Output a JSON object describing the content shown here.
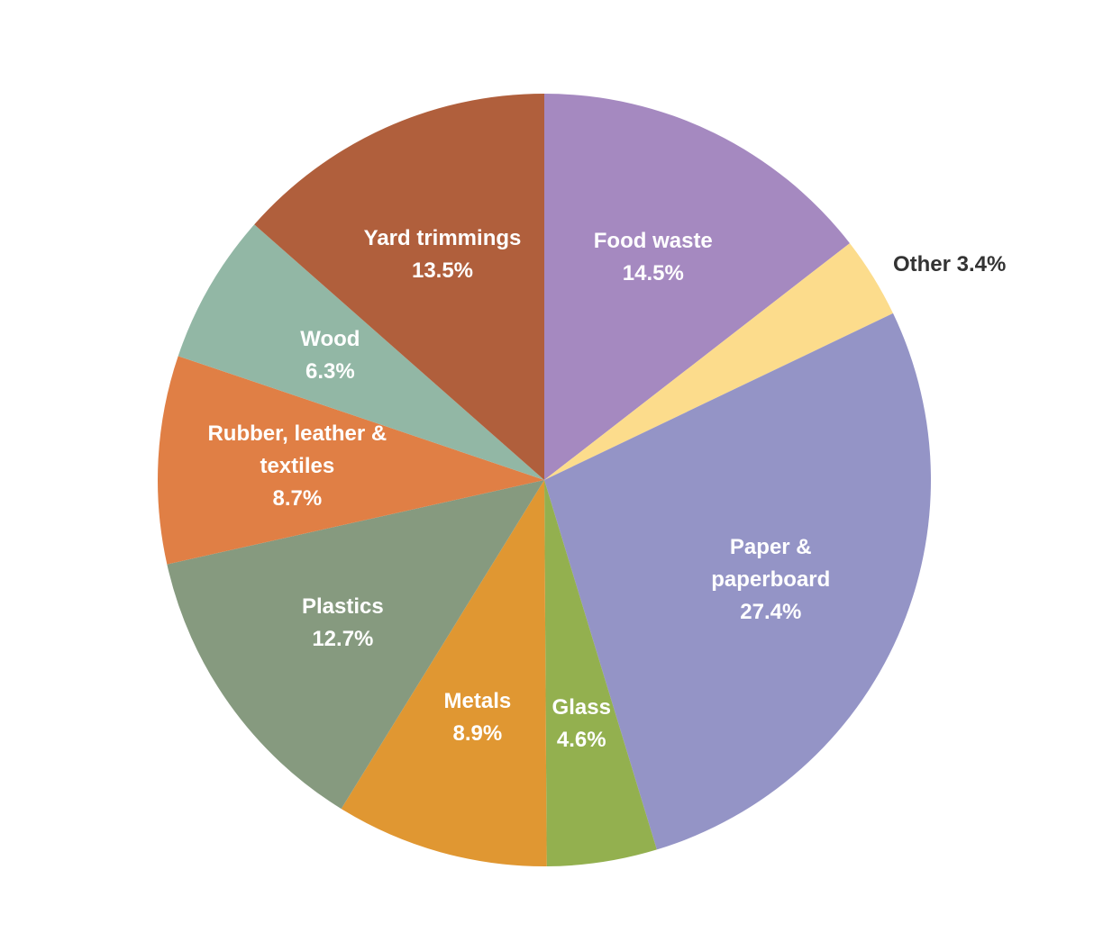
{
  "chart_data": {
    "type": "pie",
    "categories": [
      "Food waste",
      "Other",
      "Paper & paperboard",
      "Glass",
      "Metals",
      "Plastics",
      "Rubber, leather & textiles",
      "Wood",
      "Yard trimmings"
    ],
    "values": [
      14.5,
      3.4,
      27.4,
      4.6,
      8.9,
      12.7,
      8.7,
      6.3,
      13.5
    ],
    "value_labels": [
      "14.5%",
      "3.4%",
      "27.4%",
      "4.6%",
      "8.9%",
      "12.7%",
      "8.7%",
      "6.3%",
      "13.5%"
    ],
    "colors": [
      "#a589c0",
      "#fcdc8c",
      "#9494c6",
      "#93b04f",
      "#e09732",
      "#869a7f",
      "#e07f45",
      "#92b7a5",
      "#b05f3c"
    ]
  }
}
